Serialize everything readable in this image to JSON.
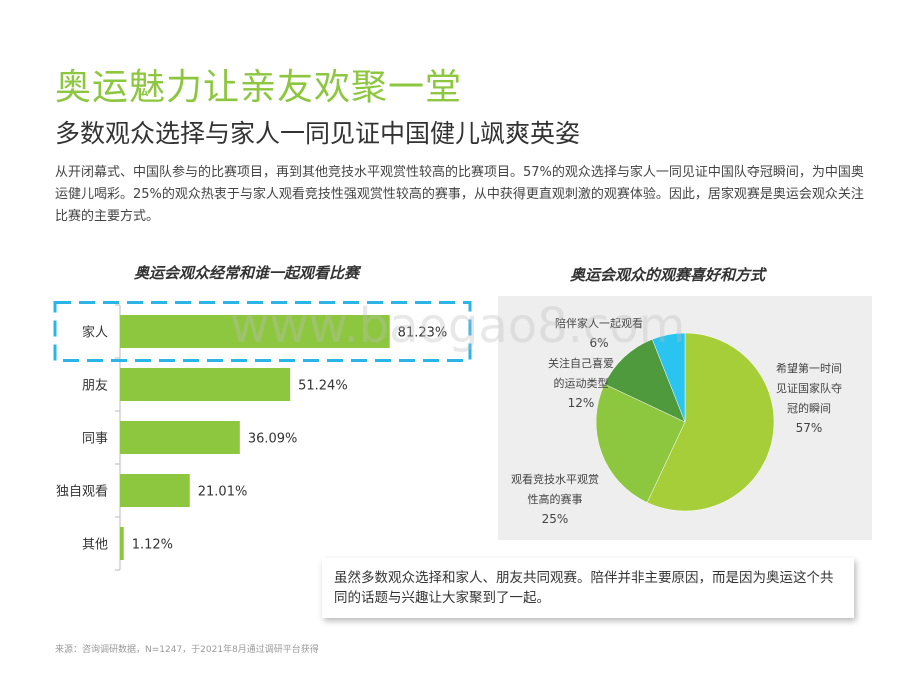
{
  "header": {
    "title": "奥运魅力让亲友欢聚一堂",
    "subtitle": "多数观众选择与家人一同见证中国健儿飒爽英姿",
    "intro": "从开闭幕式、中国队参与的比赛项目，再到其他竞技水平观赏性较高的比赛项目。57%的观众选择与家人一同见证中国队夺冠瞬间，为中国奥运健儿喝彩。25%的观众热衷于与家人观看竞技性强观赏性较高的赛事，从中获得更直观刺激的观赛体验。因此，居家观赛是奥运会观众关注比赛的主要方式。"
  },
  "watermark": "www.baogao8.com",
  "chart_data": [
    {
      "type": "bar",
      "orientation": "horizontal",
      "title": "奥运会观众经常和谁一起观看比赛",
      "categories": [
        "家人",
        "朋友",
        "同事",
        "独自观看",
        "其他"
      ],
      "values": [
        81.23,
        51.24,
        36.09,
        21.01,
        1.12
      ],
      "value_labels": [
        "81.23%",
        "51.24%",
        "36.09%",
        "21.01%",
        "1.12%"
      ],
      "xlim": [
        0,
        100
      ],
      "highlight_category": "家人",
      "color": "#8dc63f"
    },
    {
      "type": "pie",
      "title": "奥运会观众的观赛喜好和方式",
      "slices": [
        {
          "label_lines": [
            "希望第一时间",
            "见证国家队夺",
            "冠的瞬间"
          ],
          "value": 57,
          "value_label": "57%",
          "color": "#a6ce39"
        },
        {
          "label_lines": [
            "观看竞技水平观赏",
            "性高的赛事"
          ],
          "value": 25,
          "value_label": "25%",
          "color": "#8dc63f"
        },
        {
          "label_lines": [
            "关注自己喜爱",
            "的运动类型"
          ],
          "value": 12,
          "value_label": "12%",
          "color": "#4e9a3c"
        },
        {
          "label_lines": [
            "陪伴家人一起观看"
          ],
          "value": 6,
          "value_label": "6%",
          "color": "#29c4ef"
        }
      ]
    }
  ],
  "callout": "虽然多数观众选择和家人、朋友共同观赛。陪伴并非主要原因，而是因为奥运这个共同的话题与兴趣让大家聚到了一起。",
  "source": "来源：咨询调研数据，N=1247，于2021年8月通过调研平台获得"
}
